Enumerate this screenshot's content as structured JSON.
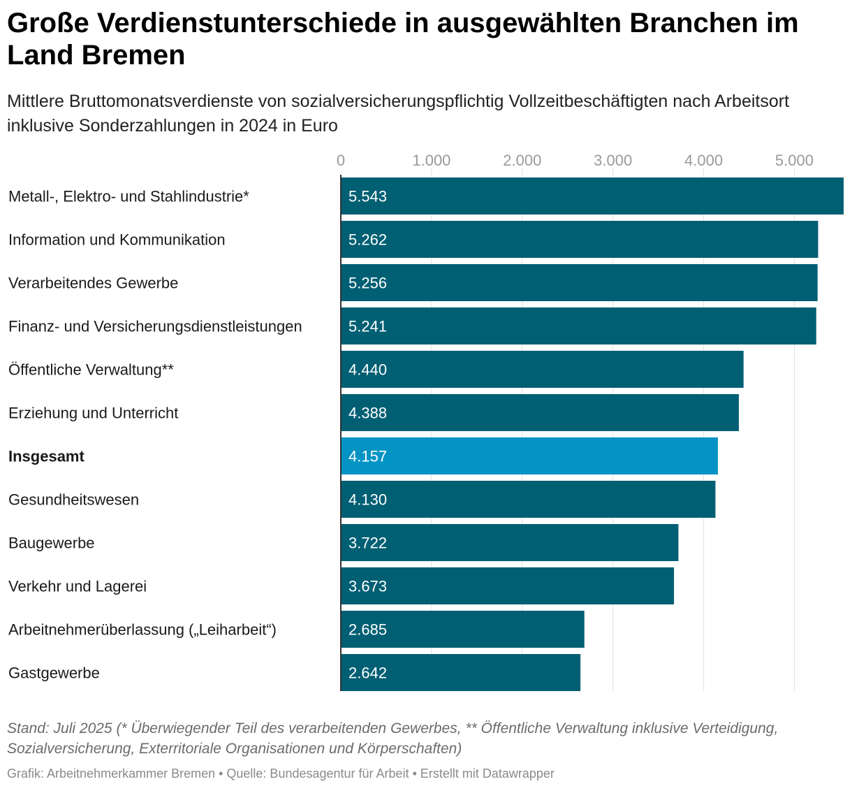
{
  "title": "Große Verdienstunterschiede in ausgewählten Branchen im Land Bremen",
  "subtitle": "Mittlere Bruttomonatsverdienste von sozialversicherungspflichtig Vollzeitbeschäftigten nach Arbeitsort inklusive Sonderzahlungen in 2024 in Euro",
  "note": "Stand: Juli 2025 (* Überwiegender Teil des verarbeitenden Gewerbes, ** Öffentliche Verwaltung inklusive Verteidigung, Sozialversicherung, Exterritoriale Organisationen und Körperschaften)",
  "footer": "Grafik: Arbeitnehmerkammer Bremen • Quelle: Bundesagentur für Arbeit • Erstellt mit Datawrapper",
  "colors": {
    "bar": "#005f73",
    "highlight": "#0393c5",
    "grid": "#e0e0e0",
    "axis": "#333333",
    "tick_label": "#9a9a9a",
    "value_label": "#ffffff"
  },
  "chart_data": {
    "type": "bar",
    "orientation": "horizontal",
    "title": "Große Verdienstunterschiede in ausgewählten Branchen im Land Bremen",
    "xlabel": "",
    "ylabel": "",
    "xlim": [
      0,
      5543
    ],
    "x_ticks": [
      0,
      1000,
      2000,
      3000,
      4000,
      5000
    ],
    "x_tick_labels": [
      "0",
      "1.000",
      "2.000",
      "3.000",
      "4.000",
      "5.000"
    ],
    "categories": [
      "Metall-, Elektro- und Stahlindustrie*",
      "Information und Kommunikation",
      "Verarbeitendes Gewerbe",
      "Finanz- und Versicherungsdienstleistungen",
      "Öffentliche Verwaltung**",
      "Erziehung und Unterricht",
      "Insgesamt",
      "Gesundheitswesen",
      "Baugewerbe",
      "Verkehr und Lagerei",
      "Arbeitnehmerüberlassung („Leiharbeit“)",
      "Gastgewerbe"
    ],
    "values": [
      5543,
      5262,
      5256,
      5241,
      4440,
      4388,
      4157,
      4130,
      3722,
      3673,
      2685,
      2642
    ],
    "value_labels": [
      "5.543",
      "5.262",
      "5.256",
      "5.241",
      "4.440",
      "4.388",
      "4.157",
      "4.130",
      "3.722",
      "3.673",
      "2.685",
      "2.642"
    ],
    "highlight": [
      "Insgesamt"
    ],
    "grid": true,
    "legend": "none"
  }
}
